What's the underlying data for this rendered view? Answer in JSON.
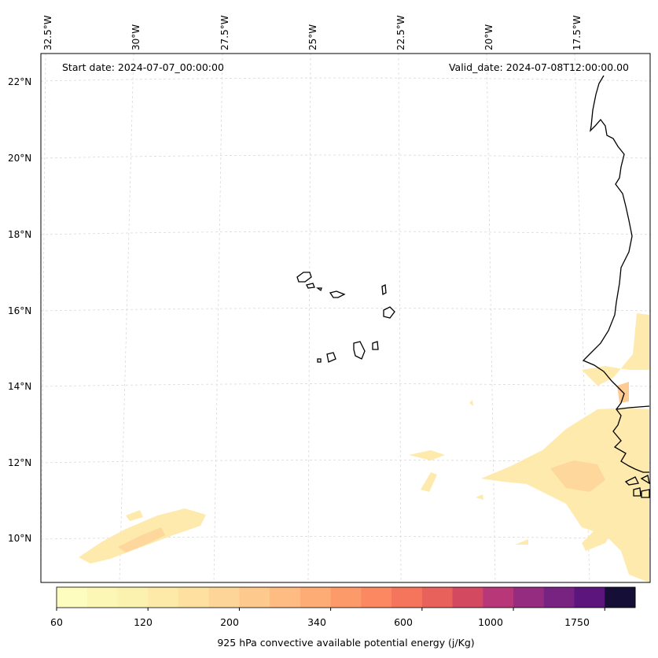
{
  "header": {
    "start_date": "Start date: 2024-07-07_00:00:00",
    "valid_date": "Valid_date: 2024-07-08T12:00:00.00"
  },
  "lon_labels": [
    "32.5°W",
    "30°W",
    "27.5°W",
    "25°W",
    "22.5°W",
    "20°W",
    "17.5°W"
  ],
  "lat_labels": [
    "22°N",
    "20°N",
    "18°N",
    "16°N",
    "14°N",
    "12°N",
    "10°N"
  ],
  "colorbar": {
    "label": "925 hPa convective available potential energy (j/Kg)",
    "tick_labels": [
      "60",
      "120",
      "200",
      "340",
      "600",
      "1000",
      "1750"
    ],
    "colors": [
      "#fcfdbf",
      "#fcf7b5",
      "#fcf2b0",
      "#fde9a8",
      "#fee0a0",
      "#fed598",
      "#fec98d",
      "#febb82",
      "#feac76",
      "#fd9a6a",
      "#fb8861",
      "#f4755c",
      "#e8615b",
      "#d3495f",
      "#b73779",
      "#952c80",
      "#782281",
      "#5b157d",
      "#150e37"
    ]
  },
  "colors": {
    "coastline": "#000000",
    "grid": "#cccccc"
  }
}
